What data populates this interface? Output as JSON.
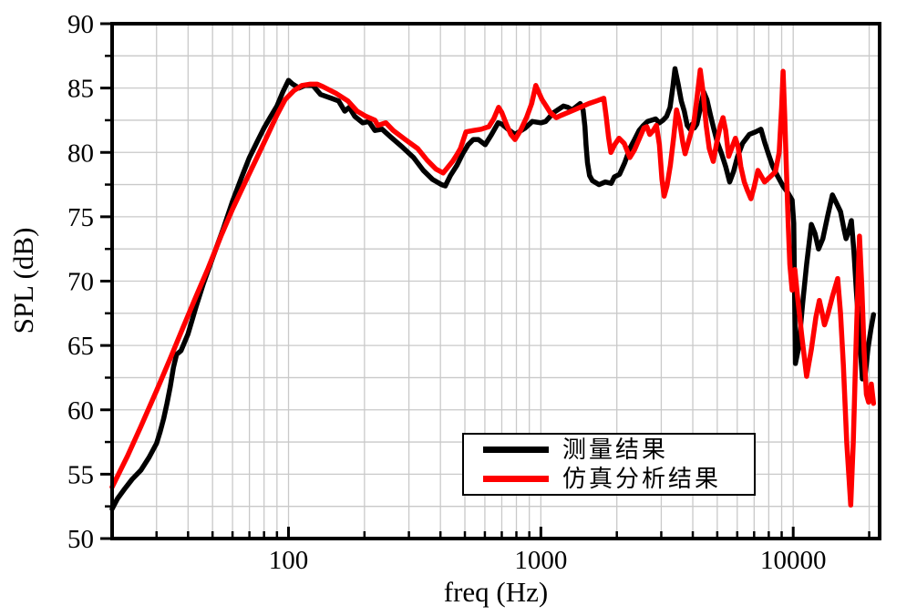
{
  "colors": {
    "background": "#ffffff",
    "frame": "#000000",
    "grid": "#c9c9c9",
    "measured": "#000000",
    "simulation": "#ff0000"
  },
  "legend": {
    "items": [
      {
        "id": "measured",
        "label": "测量结果",
        "color": "#000000"
      },
      {
        "id": "simulation",
        "label": "仿真分析结果",
        "color": "#ff0000"
      }
    ]
  },
  "chart_data": {
    "type": "line",
    "title": "",
    "xlabel": "freq (Hz)",
    "ylabel": "SPL (dB)",
    "xscale": "log",
    "xlim": [
      20,
      22000
    ],
    "ylim": [
      50,
      90
    ],
    "x_major_ticks": [
      100,
      1000,
      10000
    ],
    "x_tick_labels": [
      "100",
      "1000",
      "10000"
    ],
    "x_minor_ticks": [
      30,
      40,
      50,
      60,
      70,
      80,
      90,
      200,
      300,
      400,
      500,
      600,
      700,
      800,
      900,
      2000,
      3000,
      4000,
      5000,
      6000,
      7000,
      8000,
      9000,
      20000
    ],
    "y_major_ticks": [
      50,
      55,
      60,
      65,
      70,
      75,
      80,
      85,
      90
    ],
    "y_minor_ticks": [
      52.5,
      57.5,
      62.5,
      67.5,
      72.5,
      77.5,
      82.5,
      87.5
    ],
    "grid": true,
    "legend_position": "inside-lower-right",
    "series": [
      {
        "id": "measured",
        "name": "测量结果",
        "color": "#000000",
        "width": 5.5,
        "points": [
          [
            20,
            52.3
          ],
          [
            21,
            53.1
          ],
          [
            22.5,
            53.9
          ],
          [
            24,
            54.6
          ],
          [
            26,
            55.3
          ],
          [
            28,
            56.3
          ],
          [
            30,
            57.4
          ],
          [
            31,
            58.3
          ],
          [
            32,
            59.3
          ],
          [
            33,
            60.5
          ],
          [
            34,
            61.8
          ],
          [
            35,
            63.3
          ],
          [
            36,
            64.3
          ],
          [
            37.5,
            64.6
          ],
          [
            40,
            65.9
          ],
          [
            43,
            68.0
          ],
          [
            46,
            69.8
          ],
          [
            50,
            71.8
          ],
          [
            55,
            74.0
          ],
          [
            60,
            76.2
          ],
          [
            65,
            78.0
          ],
          [
            70,
            79.6
          ],
          [
            75,
            80.8
          ],
          [
            80,
            81.9
          ],
          [
            85,
            82.8
          ],
          [
            90,
            83.6
          ],
          [
            95,
            84.7
          ],
          [
            100,
            85.6
          ],
          [
            104,
            85.3
          ],
          [
            110,
            85.0
          ],
          [
            116,
            85.2
          ],
          [
            125,
            85.2
          ],
          [
            134,
            84.5
          ],
          [
            148,
            84.2
          ],
          [
            158,
            84.0
          ],
          [
            167,
            83.2
          ],
          [
            174,
            83.5
          ],
          [
            183,
            82.8
          ],
          [
            197,
            82.3
          ],
          [
            208,
            82.4
          ],
          [
            220,
            81.7
          ],
          [
            235,
            81.8
          ],
          [
            254,
            81.2
          ],
          [
            283,
            80.4
          ],
          [
            313,
            79.6
          ],
          [
            342,
            78.6
          ],
          [
            372,
            77.9
          ],
          [
            404,
            77.5
          ],
          [
            418,
            77.4
          ],
          [
            438,
            78.2
          ],
          [
            465,
            79.0
          ],
          [
            490,
            79.9
          ],
          [
            515,
            80.6
          ],
          [
            540,
            81.0
          ],
          [
            565,
            81.0
          ],
          [
            602,
            80.6
          ],
          [
            638,
            81.4
          ],
          [
            677,
            82.3
          ],
          [
            700,
            82.2
          ],
          [
            740,
            81.8
          ],
          [
            790,
            81.4
          ],
          [
            820,
            81.6
          ],
          [
            868,
            81.9
          ],
          [
            925,
            82.4
          ],
          [
            1000,
            82.3
          ],
          [
            1045,
            82.4
          ],
          [
            1124,
            83.1
          ],
          [
            1229,
            83.6
          ],
          [
            1280,
            83.5
          ],
          [
            1330,
            83.3
          ],
          [
            1432,
            83.8
          ],
          [
            1470,
            83.3
          ],
          [
            1495,
            82.0
          ],
          [
            1510,
            80.6
          ],
          [
            1530,
            79.2
          ],
          [
            1560,
            78.2
          ],
          [
            1600,
            77.8
          ],
          [
            1700,
            77.5
          ],
          [
            1800,
            77.7
          ],
          [
            1900,
            77.6
          ],
          [
            1955,
            78.1
          ],
          [
            2050,
            78.3
          ],
          [
            2150,
            79.2
          ],
          [
            2250,
            80.3
          ],
          [
            2350,
            81.0
          ],
          [
            2450,
            81.7
          ],
          [
            2550,
            82.1
          ],
          [
            2650,
            82.4
          ],
          [
            2750,
            82.5
          ],
          [
            2850,
            82.6
          ],
          [
            2950,
            82.3
          ],
          [
            3050,
            82.5
          ],
          [
            3150,
            82.8
          ],
          [
            3250,
            83.5
          ],
          [
            3330,
            85.0
          ],
          [
            3400,
            86.5
          ],
          [
            3500,
            85.3
          ],
          [
            3600,
            84.0
          ],
          [
            3700,
            83.2
          ],
          [
            3800,
            82.1
          ],
          [
            3900,
            81.8
          ],
          [
            3980,
            82.2
          ],
          [
            4060,
            81.9
          ],
          [
            4150,
            82.2
          ],
          [
            4280,
            83.4
          ],
          [
            4420,
            84.7
          ],
          [
            4550,
            84.1
          ],
          [
            4700,
            82.9
          ],
          [
            4850,
            81.8
          ],
          [
            5000,
            80.8
          ],
          [
            5200,
            79.9
          ],
          [
            5400,
            78.9
          ],
          [
            5600,
            77.7
          ],
          [
            5800,
            78.5
          ],
          [
            6000,
            79.6
          ],
          [
            6300,
            80.7
          ],
          [
            6700,
            81.4
          ],
          [
            7100,
            81.6
          ],
          [
            7450,
            81.8
          ],
          [
            7700,
            80.8
          ],
          [
            8000,
            79.8
          ],
          [
            8300,
            78.9
          ],
          [
            8700,
            78.1
          ],
          [
            9100,
            77.4
          ],
          [
            9500,
            76.9
          ],
          [
            9900,
            76.3
          ],
          [
            10050,
            74.5
          ],
          [
            10200,
            63.6
          ],
          [
            10500,
            64.8
          ],
          [
            10900,
            68.3
          ],
          [
            11300,
            71.3
          ],
          [
            11800,
            74.4
          ],
          [
            12200,
            73.7
          ],
          [
            12600,
            72.5
          ],
          [
            13100,
            73.3
          ],
          [
            13700,
            75.1
          ],
          [
            14300,
            76.7
          ],
          [
            14900,
            76.0
          ],
          [
            15400,
            75.4
          ],
          [
            15900,
            74.0
          ],
          [
            16200,
            73.3
          ],
          [
            16600,
            73.9
          ],
          [
            17000,
            74.7
          ],
          [
            17400,
            72.3
          ],
          [
            17800,
            69.2
          ],
          [
            18300,
            65.8
          ],
          [
            18800,
            62.4
          ],
          [
            19300,
            62.8
          ],
          [
            19800,
            64.8
          ],
          [
            20300,
            66.2
          ],
          [
            20800,
            67.4
          ]
        ]
      },
      {
        "id": "simulation",
        "name": "仿真分析结果",
        "color": "#ff0000",
        "width": 5.5,
        "points": [
          [
            20,
            54.0
          ],
          [
            23,
            56.4
          ],
          [
            26,
            58.7
          ],
          [
            30,
            61.5
          ],
          [
            34,
            64.0
          ],
          [
            38,
            66.3
          ],
          [
            43,
            68.8
          ],
          [
            48,
            71.0
          ],
          [
            54,
            73.5
          ],
          [
            60,
            75.6
          ],
          [
            67,
            77.6
          ],
          [
            75,
            79.6
          ],
          [
            82,
            81.2
          ],
          [
            90,
            82.9
          ],
          [
            97,
            84.1
          ],
          [
            105,
            84.8
          ],
          [
            113,
            85.2
          ],
          [
            122,
            85.3
          ],
          [
            130,
            85.3
          ],
          [
            137,
            85.1
          ],
          [
            154,
            84.6
          ],
          [
            172,
            84.0
          ],
          [
            187,
            83.2
          ],
          [
            203,
            82.8
          ],
          [
            220,
            82.5
          ],
          [
            226,
            82.1
          ],
          [
            243,
            82.3
          ],
          [
            260,
            81.7
          ],
          [
            290,
            81.0
          ],
          [
            325,
            80.3
          ],
          [
            354,
            79.4
          ],
          [
            384,
            78.7
          ],
          [
            410,
            78.4
          ],
          [
            447,
            79.3
          ],
          [
            464,
            79.8
          ],
          [
            480,
            80.3
          ],
          [
            505,
            81.6
          ],
          [
            540,
            81.7
          ],
          [
            580,
            81.8
          ],
          [
            622,
            82.0
          ],
          [
            650,
            82.6
          ],
          [
            680,
            83.5
          ],
          [
            700,
            83.1
          ],
          [
            730,
            82.2
          ],
          [
            760,
            81.4
          ],
          [
            790,
            81.0
          ],
          [
            830,
            81.7
          ],
          [
            877,
            82.7
          ],
          [
            920,
            83.8
          ],
          [
            955,
            85.2
          ],
          [
            985,
            84.6
          ],
          [
            1010,
            84.1
          ],
          [
            1050,
            83.6
          ],
          [
            1090,
            83.1
          ],
          [
            1150,
            82.7
          ],
          [
            1210,
            82.9
          ],
          [
            1320,
            83.2
          ],
          [
            1430,
            83.5
          ],
          [
            1550,
            83.8
          ],
          [
            1660,
            84.0
          ],
          [
            1776,
            84.2
          ],
          [
            1815,
            82.8
          ],
          [
            1855,
            81.2
          ],
          [
            1895,
            80.0
          ],
          [
            1960,
            80.6
          ],
          [
            2040,
            81.1
          ],
          [
            2140,
            80.7
          ],
          [
            2250,
            79.6
          ],
          [
            2350,
            80.2
          ],
          [
            2460,
            81.1
          ],
          [
            2560,
            81.9
          ],
          [
            2630,
            82.0
          ],
          [
            2700,
            81.4
          ],
          [
            2790,
            81.7
          ],
          [
            2870,
            82.1
          ],
          [
            2950,
            80.6
          ],
          [
            3020,
            77.9
          ],
          [
            3080,
            76.6
          ],
          [
            3160,
            77.4
          ],
          [
            3260,
            79.0
          ],
          [
            3360,
            81.2
          ],
          [
            3450,
            83.3
          ],
          [
            3550,
            82.3
          ],
          [
            3650,
            80.8
          ],
          [
            3730,
            79.9
          ],
          [
            3830,
            80.7
          ],
          [
            3930,
            81.5
          ],
          [
            4030,
            82.2
          ],
          [
            4130,
            83.8
          ],
          [
            4280,
            86.4
          ],
          [
            4400,
            84.6
          ],
          [
            4520,
            82.1
          ],
          [
            4650,
            80.3
          ],
          [
            4820,
            79.3
          ],
          [
            4980,
            80.8
          ],
          [
            5150,
            82.1
          ],
          [
            5270,
            82.7
          ],
          [
            5400,
            81.7
          ],
          [
            5550,
            79.7
          ],
          [
            5700,
            80.3
          ],
          [
            5900,
            81.1
          ],
          [
            6050,
            80.4
          ],
          [
            6200,
            78.9
          ],
          [
            6400,
            77.7
          ],
          [
            6600,
            77.0
          ],
          [
            6800,
            76.4
          ],
          [
            7000,
            77.3
          ],
          [
            7250,
            78.6
          ],
          [
            7500,
            78.1
          ],
          [
            7700,
            77.7
          ],
          [
            7900,
            77.9
          ],
          [
            8200,
            78.2
          ],
          [
            8500,
            78.5
          ],
          [
            8800,
            80.0
          ],
          [
            9000,
            83.5
          ],
          [
            9120,
            86.3
          ],
          [
            9250,
            83.0
          ],
          [
            9400,
            78.5
          ],
          [
            9550,
            74.5
          ],
          [
            9700,
            71.3
          ],
          [
            9900,
            69.3
          ],
          [
            10150,
            70.9
          ],
          [
            10400,
            68.8
          ],
          [
            10800,
            65.8
          ],
          [
            11300,
            62.6
          ],
          [
            11800,
            64.7
          ],
          [
            12300,
            67.2
          ],
          [
            12700,
            68.5
          ],
          [
            13000,
            67.6
          ],
          [
            13300,
            66.6
          ],
          [
            13700,
            67.4
          ],
          [
            14300,
            68.8
          ],
          [
            15000,
            70.2
          ],
          [
            15400,
            67.5
          ],
          [
            15800,
            63.5
          ],
          [
            16300,
            57.5
          ],
          [
            16900,
            52.6
          ],
          [
            17300,
            57.5
          ],
          [
            17700,
            64.5
          ],
          [
            18300,
            73.5
          ],
          [
            18700,
            69.5
          ],
          [
            19100,
            64.5
          ],
          [
            19500,
            61.2
          ],
          [
            19900,
            60.6
          ],
          [
            20400,
            62.0
          ],
          [
            20800,
            60.5
          ]
        ]
      }
    ]
  }
}
